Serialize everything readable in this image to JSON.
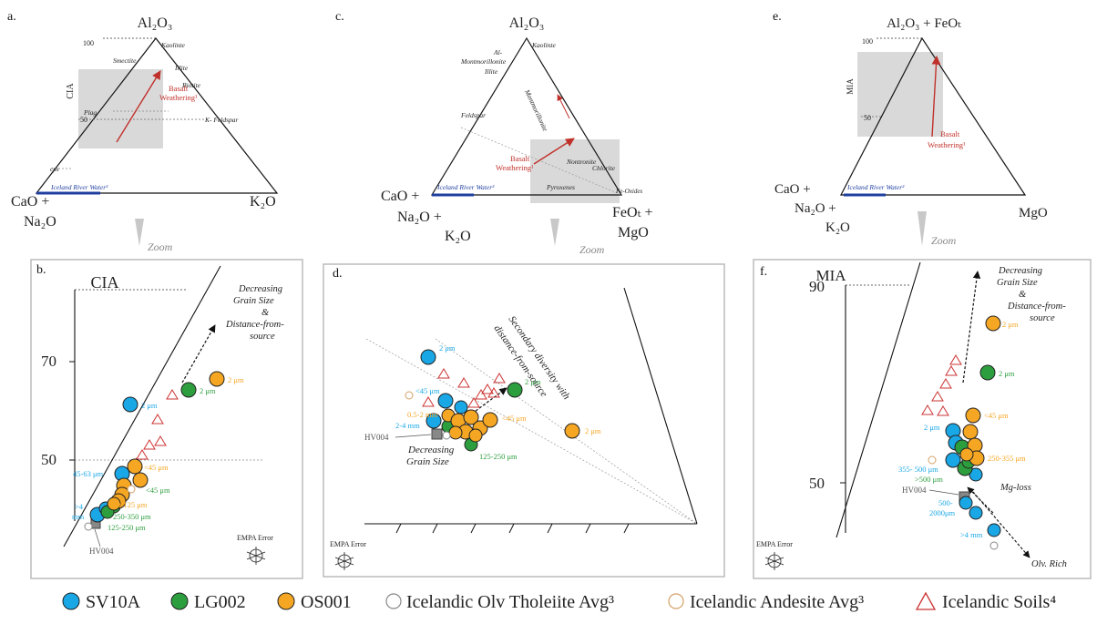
{
  "panel_labels": {
    "a": "a.",
    "b": "b.",
    "c": "c.",
    "d": "d.",
    "e": "e.",
    "f": "f."
  },
  "zoom_label": "Zoom",
  "basalt_weathering": "Basalt",
  "basalt_weathering2": "Weathering¹",
  "iceland_river_water": "Iceland River Water²",
  "empa_error": "EMPA Error",
  "panel_a": {
    "apex_top": "Al₂O₃",
    "apex_left_1": "CaO +",
    "apex_left_2": "Na₂O",
    "apex_right": "K₂O",
    "axis": "CIA",
    "tick_100": "100",
    "tick_50": "50",
    "minerals": {
      "kaolinite": "Kaolinte",
      "smectite": "Smectite",
      "illite": "Illite",
      "biotite": "Biotite",
      "plag": "Plag",
      "kfeldspar": "K- Feldspar",
      "cpx": "cpx"
    }
  },
  "panel_b": {
    "title": "CIA",
    "tick_70": "70",
    "tick_50": "50",
    "trend_1": "Decreasing",
    "trend_2": "Grain Size",
    "trend_3": "&",
    "trend_4": "Distance-from-",
    "trend_5": "source",
    "hv004": "HV004",
    "sizes": {
      "s1": "2 μm",
      "s2": "2 μm",
      "s3": "2 μm",
      "s4": "45-63 μm",
      "s5": "<45 μm",
      "s6": "<45 μm",
      "s7": ">4",
      "s8": "mm",
      "s9": "90-125 μm",
      "s10": "250-350 μm",
      "s11": "125-250 μm"
    }
  },
  "panel_c": {
    "apex_top": "Al₂O₃",
    "apex_left_1": "CaO +",
    "apex_left_2": "Na₂O +",
    "apex_left_3": "K₂O",
    "apex_right_1": "FeOₜ +",
    "apex_right_2": "MgO",
    "minerals": {
      "kaolinite": "Kaolinte",
      "al1": "Al-",
      "al2": "Montmorillonite",
      "illite": "Illite",
      "feldspar": "Feldspar",
      "montmorillonite": "Montmorillonite",
      "nontronite": "Nontronite",
      "chlorite": "Chlorite",
      "pyroxenes": "Pyroxenes",
      "feoxides": "Fe-Oxides"
    }
  },
  "panel_d": {
    "secondary_1": "Secondary diversity with",
    "secondary_2": "distance-from-source",
    "grain_1": "Decreasing",
    "grain_2": "Grain Size",
    "hv004": "HV004",
    "sizes": {
      "s1": "2 μm",
      "s2": "<45 μm",
      "s3": "2 μm",
      "s4": "0.5-2 mm",
      "s5": "2-4 mm",
      "s6": "<45 μm",
      "s7": "2 μm",
      "s8": "125-250 μm"
    }
  },
  "panel_e": {
    "apex_top": "Al₂O₃ + FeOₜ",
    "apex_left_1": "CaO +",
    "apex_left_2": "Na₂O +",
    "apex_left_3": "K₂O",
    "apex_right": "MgO",
    "axis": "MIA",
    "tick_100": "100",
    "tick_50": "50"
  },
  "panel_f": {
    "title": "MIA",
    "tick_90": "90",
    "tick_50": "50",
    "trend_1": "Decreasing",
    "trend_2": "Grain Size",
    "trend_3": "&",
    "trend_4": "Distance-from-",
    "trend_5": "source",
    "mgloss": "Mg-loss",
    "olv": "Olv. Rich",
    "hv004": "HV004",
    "sizes": {
      "s1": "2 μm",
      "s2": "2 μm",
      "s3": "<45 μm",
      "s4": "2 μm",
      "s5": "250-355 μm",
      "s6": "355- 500 μm",
      "s7": ">500 μm",
      "s8": "500-",
      "s9": "2000μm",
      "s10": ">4 mm"
    }
  },
  "legend": {
    "sv10a": "SV10A",
    "lg002": "LG002",
    "os001": "OS001",
    "tholeiite": "Icelandic Olv Tholeiite Avg³",
    "andesite": "Icelandic Andesite Avg³",
    "soils": "Icelandic Soils⁴"
  },
  "colors": {
    "sv10a": "#1aa7e6",
    "lg002": "#2d9e3e",
    "os001": "#f5a623",
    "andesite": "#d4a066",
    "tholeiite": "#888888",
    "soils": "#cc3333",
    "river": "#1f3fa0",
    "arrow": "#c0302a"
  }
}
